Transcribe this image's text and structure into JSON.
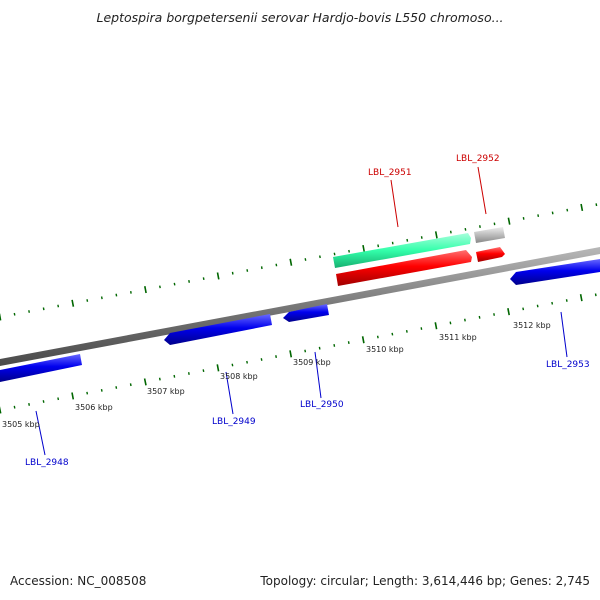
{
  "title": "Leptospira borgpetersenii serovar Hardjo-bovis L550 chromoso...",
  "footer": {
    "accession": "Accession: NC_008508",
    "summary": "Topology: circular; Length: 3,614,446 bp; Genes: 2,745"
  },
  "colors": {
    "forward_gene": "#0000ee",
    "reverse_gene": "#ff0000",
    "rna": "#33ffaa",
    "pseudo": "#bbbbbb",
    "backbone": "#777777",
    "tick": "#006600",
    "forward_label": "#0000cc",
    "reverse_label": "#cc0000"
  },
  "ticks": {
    "labels": [
      "3505 kbp",
      "3506 kbp",
      "3507 kbp",
      "3508 kbp",
      "3509 kbp",
      "3510 kbp",
      "3511 kbp",
      "3512 kbp"
    ]
  },
  "genes": [
    {
      "id": "LBL_2948",
      "strand": "forward"
    },
    {
      "id": "LBL_2949",
      "strand": "forward"
    },
    {
      "id": "LBL_2950",
      "strand": "forward"
    },
    {
      "id": "LBL_2951",
      "strand": "reverse"
    },
    {
      "id": "LBL_2952",
      "strand": "reverse"
    },
    {
      "id": "LBL_2953",
      "strand": "forward"
    }
  ]
}
